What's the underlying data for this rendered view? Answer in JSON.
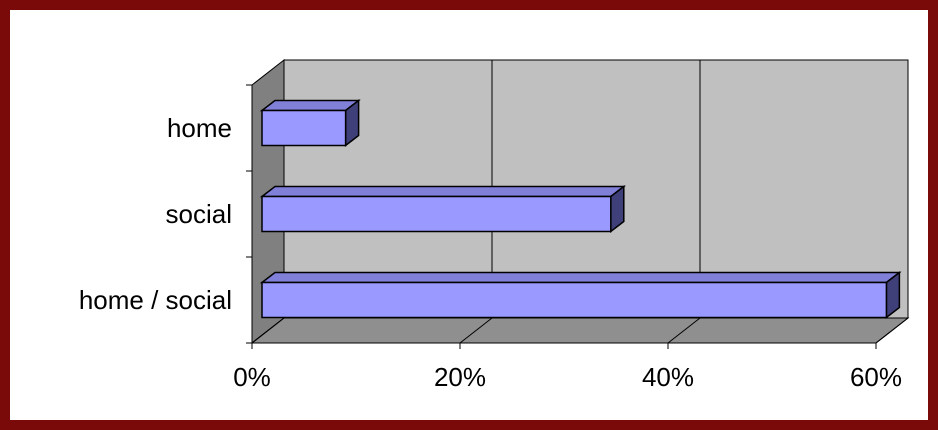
{
  "chart_data": {
    "type": "bar",
    "orientation": "horizontal",
    "style": "3d",
    "categories": [
      "home",
      "social",
      "home / social"
    ],
    "values": [
      0.09,
      0.345,
      0.61
    ],
    "xlim": [
      0,
      0.6
    ],
    "x_ticks": [
      0,
      0.2,
      0.4,
      0.6
    ],
    "x_tick_labels": [
      "0%",
      "20%",
      "40%",
      "60%"
    ],
    "title": "",
    "xlabel": "",
    "ylabel": "",
    "grid": "vertical",
    "colors": {
      "bar_front": "#9999ff",
      "bar_top": "#8080d8",
      "bar_side": "#3f3f7a",
      "back_wall": "#c0c0c0",
      "side_wall": "#808080",
      "floor": "#8f8f8f",
      "frame_border": "#7a0a0a"
    }
  }
}
